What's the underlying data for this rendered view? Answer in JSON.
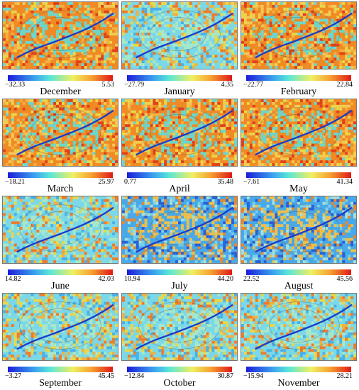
{
  "panels": [
    {
      "month": "December",
      "min": "−32.33",
      "max": "5.53",
      "tone": "warm"
    },
    {
      "month": "January",
      "min": "−27.79",
      "max": "4.35",
      "tone": "mixed"
    },
    {
      "month": "February",
      "min": "−22.77",
      "max": "22.84",
      "tone": "warm"
    },
    {
      "month": "March",
      "min": "−18.21",
      "max": "25.97",
      "tone": "warm"
    },
    {
      "month": "April",
      "min": "0.77",
      "max": "35.48",
      "tone": "warm"
    },
    {
      "month": "May",
      "min": "−7.61",
      "max": "41.34",
      "tone": "warm"
    },
    {
      "month": "June",
      "min": "14.82",
      "max": "42.03",
      "tone": "mixed"
    },
    {
      "month": "July",
      "min": "10.94",
      "max": "44.20",
      "tone": "cool"
    },
    {
      "month": "August",
      "min": "22.52",
      "max": "45.56",
      "tone": "cool"
    },
    {
      "month": "September",
      "min": "−3.27",
      "max": "45.45",
      "tone": "mixed"
    },
    {
      "month": "October",
      "min": "−12.84",
      "max": "30.87",
      "tone": "mixed"
    },
    {
      "month": "November",
      "min": "−15.94",
      "max": "28.21",
      "tone": "mixed"
    }
  ],
  "palette": {
    "warm": [
      "#f08a24",
      "#f4b040",
      "#e8d84a",
      "#e0401c",
      "#f6c85a",
      "#68d8d0"
    ],
    "mixed": [
      "#7ad8e8",
      "#f0b040",
      "#e8d848",
      "#48b0e8",
      "#f07a28",
      "#a8e8c8"
    ],
    "cool": [
      "#48a8e8",
      "#78d0e8",
      "#2860d8",
      "#f0c048",
      "#e88830",
      "#a8e0d8"
    ],
    "river": "#1a3cc8"
  }
}
